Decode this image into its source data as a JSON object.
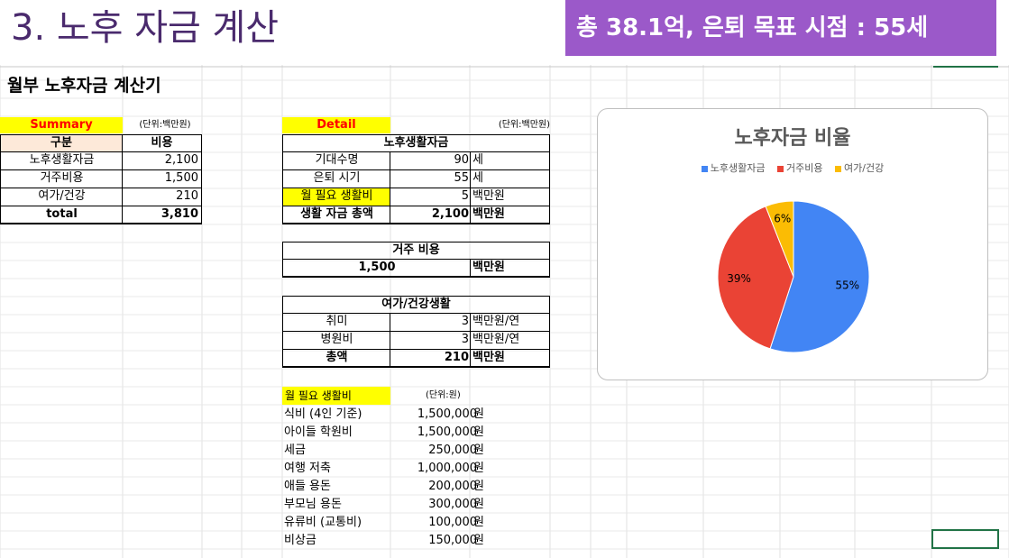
{
  "slide": {
    "title": "3. 노후 자금 계산",
    "banner": "총 38.1억, 은퇴 목표 시점 : 55세"
  },
  "sheet": {
    "title": "월부 노후자금 계산기"
  },
  "summary": {
    "label": "Summary",
    "unit": "(단위:백만원)",
    "headers": [
      "구분",
      "비용"
    ],
    "rows": [
      {
        "name": "노후생활자금",
        "value": "2,100"
      },
      {
        "name": "거주비용",
        "value": "1,500"
      },
      {
        "name": "여가/건강",
        "value": "210"
      }
    ],
    "total": {
      "name": "total",
      "value": "3,810"
    }
  },
  "detail": {
    "label": "Detail",
    "unit": "(단위:백만원)",
    "living": {
      "title": "노후생활자금",
      "rows": [
        {
          "name": "기대수명",
          "value": "90",
          "unit": "세"
        },
        {
          "name": "은퇴 시기",
          "value": "55",
          "unit": "세"
        },
        {
          "name": "월 필요 생활비",
          "value": "5",
          "unit": "백만원"
        },
        {
          "name": "생활 자금 총액",
          "value": "2,100",
          "unit": "백만원"
        }
      ]
    },
    "housing": {
      "title": "거주 비용",
      "value": "1,500",
      "unit": "백만원"
    },
    "leisure": {
      "title": "여가/건강생활",
      "rows": [
        {
          "name": "취미",
          "value": "3",
          "unit": "백만원/연"
        },
        {
          "name": "병원비",
          "value": "3",
          "unit": "백만원/연"
        },
        {
          "name": "총액",
          "value": "210",
          "unit": "백만원"
        }
      ]
    }
  },
  "monthly": {
    "label": "월 필요 생활비",
    "unit": "(단위:원)",
    "rows": [
      {
        "name": "식비 (4인 기준)",
        "value": "1,500,000",
        "unit": "원"
      },
      {
        "name": "아이들 학원비",
        "value": "1,500,000",
        "unit": "원"
      },
      {
        "name": "세금",
        "value": "250,000",
        "unit": "원"
      },
      {
        "name": "여행 저축",
        "value": "1,000,000",
        "unit": "원"
      },
      {
        "name": "애들 용돈",
        "value": "200,000",
        "unit": "원"
      },
      {
        "name": "부모님 용돈",
        "value": "300,000",
        "unit": "원"
      },
      {
        "name": "유류비 (교통비)",
        "value": "100,000",
        "unit": "원"
      },
      {
        "name": "비상금",
        "value": "150,000",
        "unit": "원"
      }
    ]
  },
  "chart_data": {
    "type": "pie",
    "title": "노후자금 비율",
    "legend_position": "top",
    "categories": [
      "노후생활자금",
      "거주비용",
      "여가/건강"
    ],
    "values": [
      55,
      39,
      6
    ],
    "labels": [
      "55%",
      "39%",
      "6%"
    ],
    "colors": [
      "#4285f4",
      "#ea4335",
      "#fbbc04"
    ]
  }
}
